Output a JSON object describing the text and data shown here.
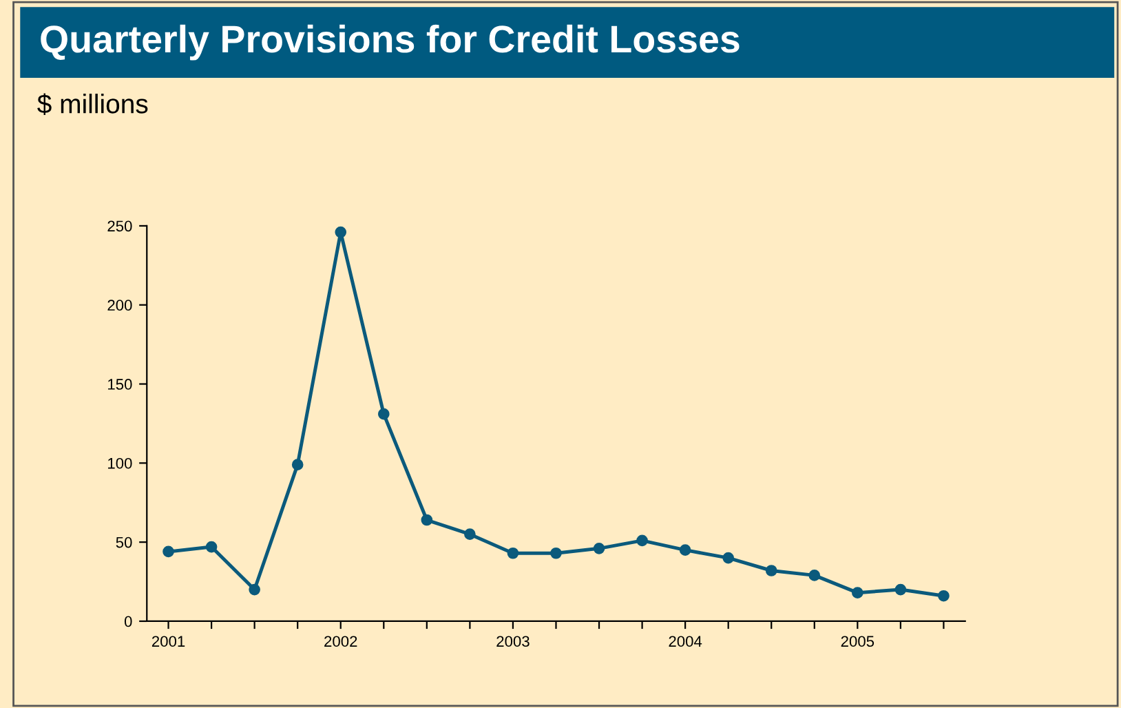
{
  "chart_data": {
    "type": "line",
    "title": "Quarterly Provisions for Credit Losses",
    "subtitle": "$ millions",
    "categories": [
      "2001",
      null,
      null,
      null,
      "2002",
      null,
      null,
      null,
      "2003",
      null,
      null,
      null,
      "2004",
      null,
      null,
      null,
      "2005",
      null,
      null
    ],
    "series": [
      {
        "color": "#0b5a7c",
        "values": [
          44,
          47,
          20,
          99,
          246,
          131,
          64,
          55,
          43,
          43,
          46,
          51,
          45,
          40,
          32,
          29,
          18,
          20,
          16
        ]
      }
    ],
    "ylim": [
      0,
      250
    ],
    "yticks": [
      0,
      50,
      100,
      150,
      200,
      250
    ],
    "grid": false,
    "legend": false,
    "marker": "circle",
    "line_style": "solid"
  }
}
